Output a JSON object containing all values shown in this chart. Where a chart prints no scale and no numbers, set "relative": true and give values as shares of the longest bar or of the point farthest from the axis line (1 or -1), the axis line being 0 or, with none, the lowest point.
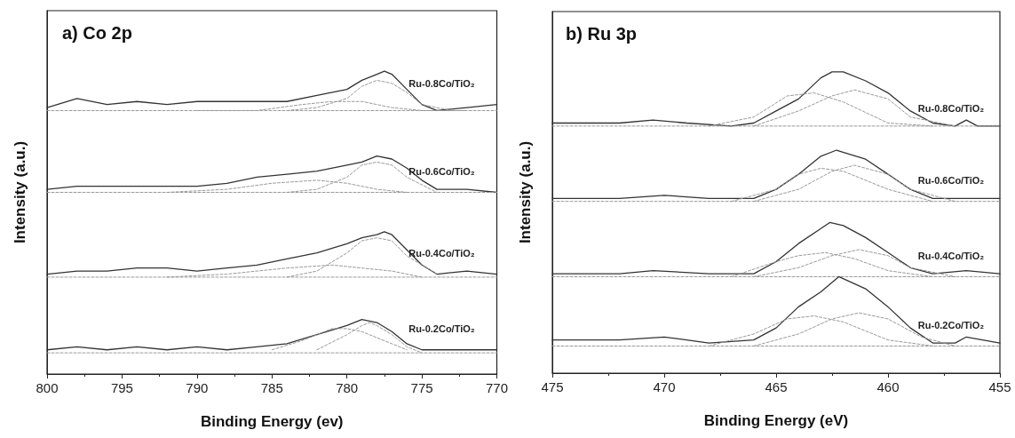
{
  "chart_data": [
    {
      "type": "line",
      "relative": true,
      "title": "a) Co 2p",
      "xlabel": "Binding Energy (ev)",
      "ylabel": "Intensity (a.u.)",
      "xlim": [
        800,
        770
      ],
      "xticks": [
        800,
        795,
        790,
        785,
        780,
        775,
        770
      ],
      "marker": "none",
      "series": [
        {
          "name": "Ru-0.8Co/TiO₂",
          "color": "#333333",
          "line_style": "solid",
          "x": [
            800,
            798,
            796,
            794,
            792,
            790,
            788,
            786,
            784,
            782,
            780,
            779,
            778,
            777.5,
            777,
            776,
            775,
            774,
            772,
            770
          ],
          "values": [
            0.88,
            0.91,
            0.89,
            0.9,
            0.89,
            0.9,
            0.9,
            0.9,
            0.9,
            0.92,
            0.94,
            0.97,
            0.99,
            1.0,
            0.99,
            0.94,
            0.89,
            0.87,
            0.88,
            0.89
          ]
        },
        {
          "color": "#999999",
          "line_style": "dashed",
          "x": [
            784,
            782,
            780,
            779,
            778,
            777,
            776,
            775,
            773
          ],
          "values": [
            0.87,
            0.88,
            0.91,
            0.95,
            0.97,
            0.96,
            0.93,
            0.89,
            0.87
          ]
        },
        {
          "color": "#999999",
          "line_style": "dashed",
          "x": [
            790,
            786,
            783,
            781,
            779,
            777,
            775,
            772
          ],
          "values": [
            0.87,
            0.87,
            0.89,
            0.9,
            0.9,
            0.88,
            0.87,
            0.87
          ]
        },
        {
          "color": "#999999",
          "line_style": "dashed",
          "x": [
            800,
            770
          ],
          "values": [
            0.87,
            0.87
          ]
        },
        {
          "name": "Ru-0.6Co/TiO₂",
          "color": "#333333",
          "line_style": "solid",
          "x": [
            800,
            798,
            796,
            794,
            792,
            790,
            788,
            786,
            784,
            782,
            780,
            779,
            778,
            777,
            776,
            775,
            774,
            772,
            770
          ],
          "values": [
            0.61,
            0.62,
            0.62,
            0.62,
            0.62,
            0.62,
            0.63,
            0.65,
            0.66,
            0.67,
            0.69,
            0.7,
            0.72,
            0.71,
            0.68,
            0.64,
            0.61,
            0.61,
            0.6
          ]
        },
        {
          "color": "#999999",
          "line_style": "dashed",
          "x": [
            784,
            782,
            780,
            779,
            778,
            777,
            776,
            774
          ],
          "values": [
            0.6,
            0.61,
            0.65,
            0.69,
            0.7,
            0.69,
            0.65,
            0.6
          ]
        },
        {
          "color": "#999999",
          "line_style": "dashed",
          "x": [
            792,
            788,
            785,
            782,
            780,
            778,
            776
          ],
          "values": [
            0.6,
            0.61,
            0.63,
            0.64,
            0.63,
            0.61,
            0.6
          ]
        },
        {
          "color": "#999999",
          "line_style": "dashed",
          "x": [
            800,
            770
          ],
          "values": [
            0.6,
            0.6
          ]
        },
        {
          "name": "Ru-0.4Co/TiO₂",
          "color": "#333333",
          "line_style": "solid",
          "x": [
            800,
            798,
            796,
            794,
            792,
            790,
            788,
            786,
            784,
            782,
            780,
            779,
            778,
            777.5,
            777,
            776,
            775,
            774,
            772,
            770
          ],
          "values": [
            0.33,
            0.34,
            0.34,
            0.35,
            0.35,
            0.34,
            0.35,
            0.36,
            0.38,
            0.4,
            0.43,
            0.45,
            0.46,
            0.47,
            0.46,
            0.41,
            0.36,
            0.33,
            0.34,
            0.33
          ]
        },
        {
          "color": "#999999",
          "line_style": "dashed",
          "x": [
            784,
            782,
            780,
            779,
            778,
            777,
            776,
            774
          ],
          "values": [
            0.32,
            0.34,
            0.4,
            0.44,
            0.45,
            0.44,
            0.39,
            0.33
          ]
        },
        {
          "color": "#999999",
          "line_style": "dashed",
          "x": [
            792,
            788,
            784,
            781,
            779,
            777,
            775
          ],
          "values": [
            0.32,
            0.33,
            0.35,
            0.36,
            0.35,
            0.34,
            0.32
          ]
        },
        {
          "color": "#999999",
          "line_style": "dashed",
          "x": [
            800,
            770
          ],
          "values": [
            0.32,
            0.32
          ]
        },
        {
          "name": "Ru-0.2Co/TiO₂",
          "color": "#333333",
          "line_style": "solid",
          "x": [
            800,
            798,
            796,
            794,
            792,
            790,
            788,
            786,
            784,
            782,
            780,
            779,
            778,
            777,
            776,
            775,
            772,
            770
          ],
          "values": [
            0.08,
            0.09,
            0.08,
            0.09,
            0.08,
            0.09,
            0.08,
            0.09,
            0.1,
            0.13,
            0.16,
            0.18,
            0.17,
            0.14,
            0.1,
            0.08,
            0.08,
            0.08
          ]
        },
        {
          "color": "#999999",
          "line_style": "dashed",
          "x": [
            782,
            780,
            779,
            778.5,
            778,
            777,
            776,
            775
          ],
          "values": [
            0.08,
            0.13,
            0.16,
            0.17,
            0.16,
            0.13,
            0.09,
            0.07
          ]
        },
        {
          "color": "#999999",
          "line_style": "dashed",
          "x": [
            785,
            783,
            781,
            780,
            779,
            777,
            776
          ],
          "values": [
            0.08,
            0.11,
            0.15,
            0.15,
            0.14,
            0.1,
            0.08
          ]
        },
        {
          "color": "#999999",
          "line_style": "dashed",
          "x": [
            800,
            770
          ],
          "values": [
            0.07,
            0.07
          ]
        }
      ]
    },
    {
      "type": "line",
      "relative": true,
      "title": "b) Ru 3p",
      "xlabel": "Binding Energy (eV)",
      "ylabel": "Intensity (a.u.)",
      "xlim": [
        475,
        455
      ],
      "xticks": [
        475,
        470,
        465,
        460,
        455
      ],
      "marker": "none",
      "series": [
        {
          "name": "Ru-0.8Co/TiO₂",
          "color": "#333333",
          "line_style": "solid",
          "x": [
            475,
            472,
            470.5,
            469,
            467,
            466,
            465,
            464,
            463,
            462.5,
            462,
            461,
            460,
            459,
            458,
            457,
            456.5,
            456,
            455
          ],
          "values": [
            0.83,
            0.83,
            0.84,
            0.83,
            0.82,
            0.83,
            0.87,
            0.91,
            0.98,
            1.0,
            1.0,
            0.97,
            0.93,
            0.87,
            0.83,
            0.82,
            0.84,
            0.82,
            0.82
          ]
        },
        {
          "color": "#999999",
          "line_style": "dashed",
          "x": [
            468,
            466,
            464.5,
            463.3,
            462,
            460,
            458
          ],
          "values": [
            0.82,
            0.85,
            0.92,
            0.93,
            0.9,
            0.83,
            0.82
          ]
        },
        {
          "color": "#999999",
          "line_style": "dashed",
          "x": [
            466,
            464,
            462.5,
            461.5,
            460,
            459,
            457
          ],
          "values": [
            0.82,
            0.87,
            0.92,
            0.94,
            0.91,
            0.85,
            0.82
          ]
        },
        {
          "color": "#999999",
          "line_style": "dashed",
          "x": [
            475,
            455
          ],
          "values": [
            0.82,
            0.82
          ]
        },
        {
          "name": "Ru-0.6Co/TiO₂",
          "color": "#333333",
          "line_style": "solid",
          "x": [
            475,
            472,
            470,
            468,
            466,
            465,
            464,
            463,
            462.3,
            461,
            460,
            459,
            458,
            456,
            455
          ],
          "values": [
            0.58,
            0.58,
            0.59,
            0.58,
            0.58,
            0.61,
            0.66,
            0.72,
            0.74,
            0.71,
            0.66,
            0.61,
            0.58,
            0.58,
            0.58
          ]
        },
        {
          "color": "#999999",
          "line_style": "dashed",
          "x": [
            467,
            465,
            464,
            463,
            462,
            460,
            458
          ],
          "values": [
            0.57,
            0.61,
            0.66,
            0.68,
            0.67,
            0.61,
            0.57
          ]
        },
        {
          "color": "#999999",
          "line_style": "dashed",
          "x": [
            466,
            464,
            462.5,
            461.5,
            460,
            459,
            457
          ],
          "values": [
            0.57,
            0.61,
            0.67,
            0.69,
            0.66,
            0.61,
            0.57
          ]
        },
        {
          "color": "#999999",
          "line_style": "dashed",
          "x": [
            475,
            455
          ],
          "values": [
            0.57,
            0.57
          ]
        },
        {
          "name": "Ru-0.4Co/TiO₂",
          "color": "#333333",
          "line_style": "solid",
          "x": [
            475,
            472,
            470.5,
            468,
            466,
            465,
            464,
            463,
            462.6,
            462,
            461,
            460,
            459,
            458,
            456.5,
            455
          ],
          "values": [
            0.33,
            0.33,
            0.34,
            0.33,
            0.33,
            0.37,
            0.43,
            0.48,
            0.5,
            0.49,
            0.45,
            0.4,
            0.35,
            0.33,
            0.34,
            0.33
          ]
        },
        {
          "color": "#999999",
          "line_style": "dashed",
          "x": [
            467,
            465,
            464,
            462.8,
            461.5,
            460,
            458
          ],
          "values": [
            0.32,
            0.37,
            0.39,
            0.4,
            0.38,
            0.34,
            0.32
          ]
        },
        {
          "color": "#999999",
          "line_style": "dashed",
          "x": [
            466,
            464,
            462.5,
            461.3,
            460,
            459,
            457
          ],
          "values": [
            0.32,
            0.35,
            0.39,
            0.41,
            0.39,
            0.35,
            0.32
          ]
        },
        {
          "color": "#999999",
          "line_style": "dashed",
          "x": [
            475,
            455
          ],
          "values": [
            0.32,
            0.32
          ]
        },
        {
          "name": "Ru-0.2Co/TiO₂",
          "color": "#333333",
          "line_style": "solid",
          "x": [
            475,
            472,
            470,
            469,
            468,
            466,
            465,
            464,
            463,
            462.2,
            461,
            460,
            459,
            458,
            457,
            456.5,
            455
          ],
          "values": [
            0.11,
            0.11,
            0.12,
            0.11,
            0.1,
            0.11,
            0.15,
            0.22,
            0.27,
            0.32,
            0.28,
            0.22,
            0.15,
            0.1,
            0.1,
            0.12,
            0.1
          ]
        },
        {
          "color": "#999999",
          "line_style": "dashed",
          "x": [
            468,
            466,
            464.5,
            463.3,
            462,
            460,
            458
          ],
          "values": [
            0.09,
            0.13,
            0.18,
            0.19,
            0.17,
            0.11,
            0.09
          ]
        },
        {
          "color": "#999999",
          "line_style": "dashed",
          "x": [
            466,
            464,
            462.5,
            461.3,
            460,
            458.5,
            457
          ],
          "values": [
            0.09,
            0.13,
            0.18,
            0.2,
            0.18,
            0.12,
            0.09
          ]
        },
        {
          "color": "#999999",
          "line_style": "dashed",
          "x": [
            475,
            455
          ],
          "values": [
            0.09,
            0.09
          ]
        }
      ]
    }
  ]
}
